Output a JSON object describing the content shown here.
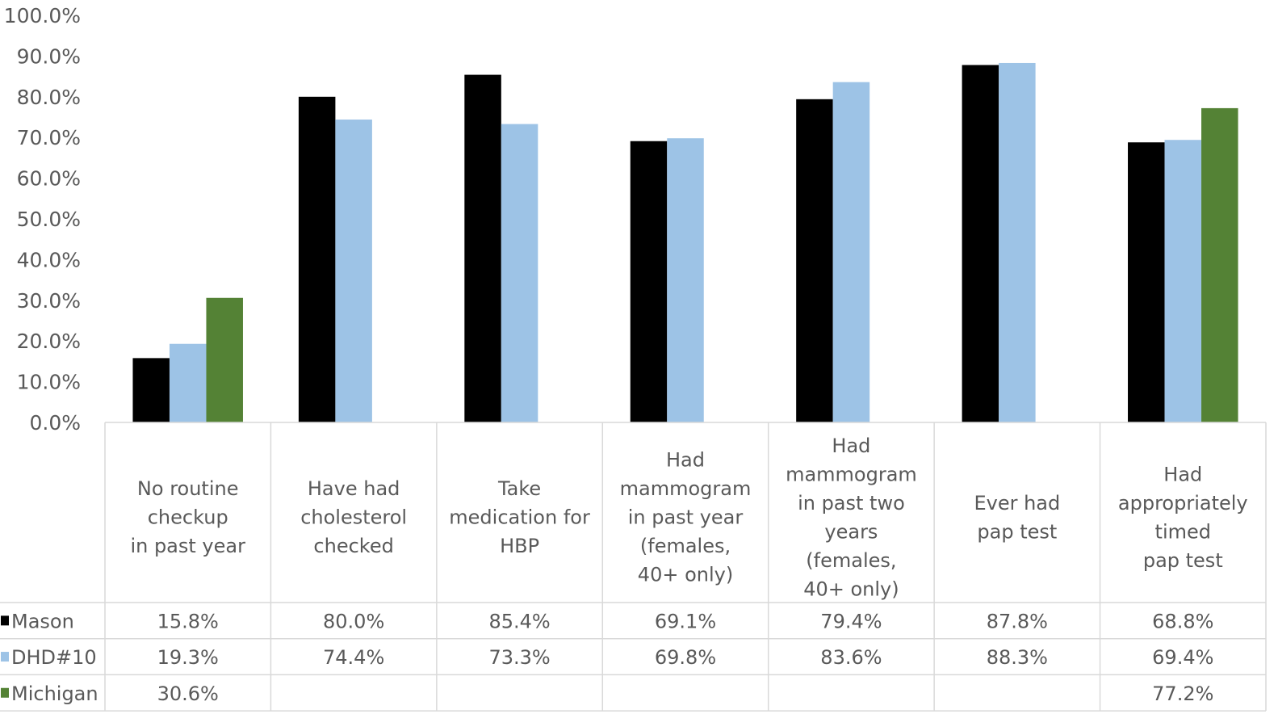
{
  "chart_data": {
    "type": "bar",
    "categories": [
      [
        "No routine",
        "checkup",
        "in past year"
      ],
      [
        "Have had",
        "cholesterol",
        "checked"
      ],
      [
        "Take",
        "medication for",
        "HBP"
      ],
      [
        "Had",
        "mammogram",
        "in past year",
        "(females,",
        "40+ only)"
      ],
      [
        "Had",
        "mammogram",
        "in past two",
        "years",
        "(females,",
        "40+ only)"
      ],
      [
        "Ever had",
        "pap test"
      ],
      [
        "Had",
        "appropriately",
        "timed",
        "pap test"
      ]
    ],
    "series": [
      {
        "name": "Mason",
        "color": "#000000",
        "values": [
          15.8,
          80.0,
          85.4,
          69.1,
          79.4,
          87.8,
          68.8
        ],
        "labels": [
          "15.8%",
          "80.0%",
          "85.4%",
          "69.1%",
          "79.4%",
          "87.8%",
          "68.8%"
        ]
      },
      {
        "name": "DHD#10",
        "color": "#9dc3e6",
        "values": [
          19.3,
          74.4,
          73.3,
          69.8,
          83.6,
          88.3,
          69.4
        ],
        "labels": [
          "19.3%",
          "74.4%",
          "73.3%",
          "69.8%",
          "83.6%",
          "88.3%",
          "69.4%"
        ]
      },
      {
        "name": "Michigan",
        "color": "#548235",
        "values": [
          30.6,
          null,
          null,
          null,
          null,
          null,
          77.2
        ],
        "labels": [
          "30.6%",
          "",
          "",
          "",
          "",
          "",
          "77.2%"
        ]
      }
    ],
    "yticks": [
      "0.0%",
      "10.0%",
      "20.0%",
      "30.0%",
      "40.0%",
      "50.0%",
      "60.0%",
      "70.0%",
      "80.0%",
      "90.0%",
      "100.0%"
    ],
    "ylim": [
      0,
      100
    ],
    "legend_position": "data-table"
  }
}
